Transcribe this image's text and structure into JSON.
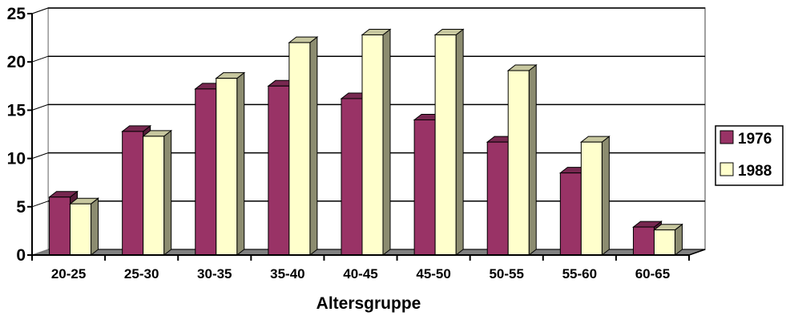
{
  "chart_data": {
    "type": "bar",
    "xlabel": "Altersgruppe",
    "ylabel": "",
    "ylim": [
      0,
      25
    ],
    "yticks": [
      0,
      5,
      10,
      15,
      20,
      25
    ],
    "grid": true,
    "legend_position": "right",
    "categories": [
      "20-25",
      "25-30",
      "30-35",
      "35-40",
      "40-45",
      "45-50",
      "50-55",
      "55-60",
      "60-65"
    ],
    "series": [
      {
        "name": "1976",
        "color": "#993366",
        "values": [
          6,
          12.8,
          17.2,
          17.5,
          16.2,
          14,
          11.7,
          8.5,
          2.9
        ]
      },
      {
        "name": "1988",
        "color": "#FFFFCC",
        "values": [
          5.3,
          12.3,
          18.3,
          22,
          22.8,
          22.8,
          19.1,
          11.7,
          2.6
        ]
      }
    ]
  }
}
